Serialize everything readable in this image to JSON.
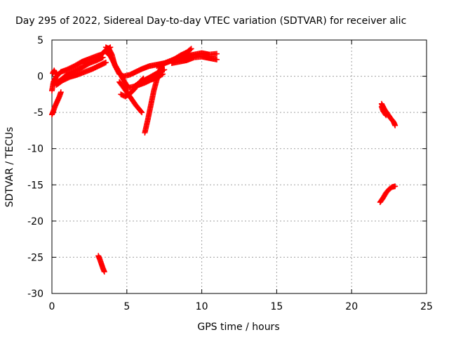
{
  "chart_data": {
    "type": "scatter",
    "title": "Day 295 of 2022, Sidereal Day-to-day VTEC variation (SDTVAR) for receiver alic",
    "xlabel": "GPS time / hours",
    "ylabel": "SDTVAR / TECUs",
    "xlim": [
      0,
      25
    ],
    "ylim": [
      -30,
      5
    ],
    "xticks": [
      0,
      5,
      10,
      15,
      20,
      25
    ],
    "yticks": [
      5,
      0,
      -5,
      -10,
      -15,
      -20,
      -25,
      -30
    ],
    "grid": true,
    "legend": "none",
    "color": "#ff0000",
    "marker": "plus",
    "series": [
      {
        "x": [
          0.0,
          0.1,
          0.3,
          0.6,
          1.0,
          1.5,
          2.0,
          2.5,
          3.0,
          3.3,
          3.6,
          3.9
        ],
        "y": [
          -2.0,
          -0.8,
          0.0,
          0.6,
          0.9,
          1.4,
          2.0,
          2.4,
          2.8,
          3.0,
          3.6,
          4.0
        ]
      },
      {
        "x": [
          0.2,
          0.6,
          1.0,
          1.5,
          2.0,
          2.5,
          3.0,
          3.4
        ],
        "y": [
          -1.0,
          -0.5,
          0.2,
          0.7,
          1.2,
          1.8,
          2.2,
          2.6
        ]
      },
      {
        "x": [
          0.3,
          0.7,
          1.2,
          1.7,
          2.2,
          2.7,
          3.2,
          3.6
        ],
        "y": [
          -1.2,
          -0.6,
          -0.1,
          0.2,
          0.6,
          1.0,
          1.5,
          1.9
        ]
      },
      {
        "x": [
          0.0,
          0.1,
          0.2,
          0.35,
          0.5,
          0.6
        ],
        "y": [
          -5.3,
          -4.8,
          -4.2,
          -3.5,
          -2.8,
          -2.2
        ]
      },
      {
        "x": [
          0.05,
          0.15,
          0.25
        ],
        "y": [
          0.4,
          0.8,
          0.3
        ]
      },
      {
        "x": [
          3.6,
          3.8,
          4.0,
          4.2,
          4.5,
          4.8,
          5.2,
          5.6,
          6.0,
          6.5,
          7.0,
          7.5
        ],
        "y": [
          4.0,
          3.8,
          3.0,
          1.5,
          0.3,
          0.0,
          0.2,
          0.6,
          1.0,
          1.4,
          1.6,
          1.8
        ]
      },
      {
        "x": [
          3.6,
          3.9,
          4.2,
          4.5,
          4.8,
          5.1,
          5.5,
          5.9,
          6.4,
          7.0,
          7.5
        ],
        "y": [
          3.4,
          2.8,
          1.6,
          0.5,
          -0.6,
          -1.6,
          -1.4,
          -0.8,
          -0.3,
          0.4,
          0.9
        ]
      },
      {
        "x": [
          4.5,
          4.8,
          5.2,
          5.6,
          6.0
        ],
        "y": [
          -0.8,
          -1.6,
          -2.8,
          -4.0,
          -5.0
        ]
      },
      {
        "x": [
          4.6,
          4.9,
          5.2,
          5.5,
          5.8,
          6.1
        ],
        "y": [
          -2.5,
          -2.8,
          -2.4,
          -1.8,
          -1.0,
          -0.3
        ]
      },
      {
        "x": [
          6.2,
          6.4,
          6.6,
          6.8,
          7.0,
          7.2,
          7.4
        ],
        "y": [
          -7.8,
          -6.0,
          -4.0,
          -2.0,
          -0.5,
          0.8,
          1.6
        ]
      },
      {
        "x": [
          5.8,
          6.2,
          6.6,
          7.0,
          7.4
        ],
        "y": [
          -1.2,
          -0.9,
          -0.5,
          -0.2,
          0.3
        ]
      },
      {
        "x": [
          7.0,
          7.5,
          8.0,
          8.5,
          9.0,
          9.5,
          10.0,
          10.5,
          11.0
        ],
        "y": [
          1.4,
          1.8,
          2.2,
          2.4,
          2.8,
          3.0,
          3.2,
          3.0,
          3.1
        ]
      },
      {
        "x": [
          7.3,
          7.8,
          8.2,
          8.6,
          9.0,
          9.3
        ],
        "y": [
          1.6,
          2.0,
          2.4,
          2.9,
          3.3,
          3.8
        ]
      },
      {
        "x": [
          8.0,
          8.5,
          9.0,
          9.5,
          10.0,
          10.5,
          11.0
        ],
        "y": [
          1.8,
          2.0,
          2.2,
          2.6,
          2.7,
          2.5,
          2.3
        ]
      },
      {
        "x": [
          3.1,
          3.2,
          3.3,
          3.4,
          3.5
        ],
        "y": [
          -24.8,
          -25.3,
          -25.9,
          -26.5,
          -27.0
        ]
      },
      {
        "x": [
          22.0,
          22.2,
          22.4,
          22.6,
          22.8,
          22.9
        ],
        "y": [
          -3.8,
          -4.6,
          -5.2,
          -5.8,
          -6.3,
          -6.8
        ]
      },
      {
        "x": [
          22.0,
          22.1,
          22.3
        ],
        "y": [
          -4.2,
          -4.8,
          -5.4
        ]
      },
      {
        "x": [
          21.9,
          22.1,
          22.3,
          22.5,
          22.7,
          22.9
        ],
        "y": [
          -17.4,
          -16.8,
          -16.1,
          -15.6,
          -15.3,
          -15.2
        ]
      }
    ]
  }
}
